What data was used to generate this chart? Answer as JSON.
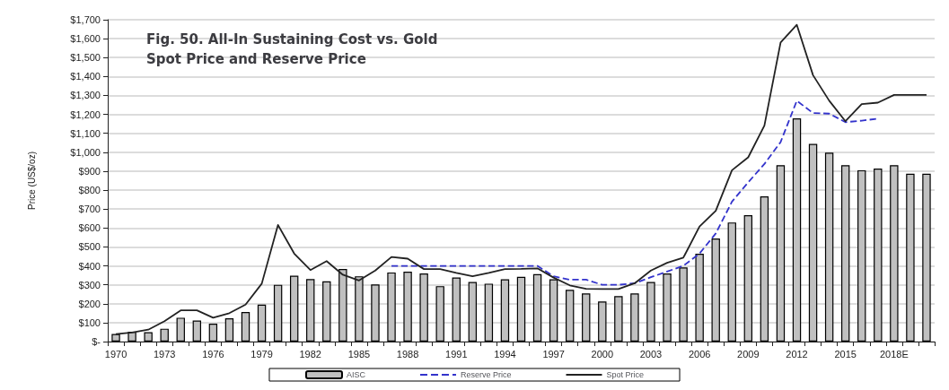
{
  "chart_data": {
    "type": "bar",
    "title": "Fig. 50. All-In Sustaining Cost vs. Gold Spot Price and Reserve Price",
    "ylabel": "Price (US$/oz)",
    "categories": [
      "1970",
      null,
      null,
      "1973",
      null,
      null,
      "1976",
      null,
      null,
      "1979",
      null,
      null,
      "1982",
      null,
      null,
      "1985",
      null,
      null,
      "1988",
      null,
      null,
      "1991",
      null,
      null,
      "1994",
      null,
      null,
      "1997",
      null,
      null,
      "2000",
      null,
      null,
      "2003",
      null,
      null,
      "2006",
      null,
      null,
      "2009",
      null,
      null,
      "2012",
      null,
      null,
      "2015",
      null,
      null,
      "2018E",
      null,
      null
    ],
    "series": [
      {
        "name": "AISC",
        "color": "#c0c0c0",
        "values": [
          40,
          52,
          50,
          68,
          126,
          111,
          95,
          123,
          156,
          195,
          300,
          348,
          330,
          318,
          383,
          345,
          302,
          365,
          369,
          360,
          293,
          338,
          315,
          306,
          329,
          342,
          356,
          329,
          273,
          254,
          212,
          240,
          254,
          315,
          360,
          392,
          464,
          544,
          629,
          668,
          767,
          932,
          1179,
          1044,
          998,
          932,
          905,
          914,
          932,
          887,
          887
        ]
      },
      {
        "name": "Reserve Price",
        "type": "line",
        "line_style": "dashed",
        "color": "#3333cc",
        "values": [
          null,
          null,
          null,
          null,
          null,
          null,
          null,
          null,
          null,
          null,
          null,
          null,
          null,
          null,
          null,
          null,
          null,
          400,
          400,
          400,
          400,
          400,
          400,
          400,
          400,
          400,
          400,
          345,
          327,
          327,
          300,
          300,
          308,
          340,
          370,
          400,
          465,
          571,
          739,
          841,
          938,
          1054,
          1272,
          1207,
          1204,
          1159,
          1167,
          1177,
          null,
          null,
          null
        ]
      },
      {
        "name": "Spot Price",
        "type": "line",
        "line_style": "solid",
        "color": "#222222",
        "values": [
          40,
          48,
          63,
          108,
          165,
          165,
          126,
          150,
          195,
          306,
          616,
          465,
          378,
          425,
          353,
          323,
          375,
          447,
          438,
          383,
          383,
          363,
          345,
          363,
          383,
          384,
          387,
          338,
          297,
          279,
          278,
          278,
          308,
          375,
          416,
          443,
          608,
          691,
          905,
          973,
          1141,
          1580,
          1673,
          1407,
          1272,
          1164,
          1254,
          1262,
          1303,
          1303,
          1303
        ]
      }
    ],
    "ylim": [
      0,
      1700
    ],
    "yticks": [
      {
        "value": 0,
        "label": "$-"
      },
      {
        "value": 100,
        "label": "$100"
      },
      {
        "value": 200,
        "label": "$200"
      },
      {
        "value": 300,
        "label": "$300"
      },
      {
        "value": 400,
        "label": "$400"
      },
      {
        "value": 500,
        "label": "$500"
      },
      {
        "value": 600,
        "label": "$600"
      },
      {
        "value": 700,
        "label": "$700"
      },
      {
        "value": 800,
        "label": "$800"
      },
      {
        "value": 900,
        "label": "$900"
      },
      {
        "value": 1000,
        "label": "$1,000"
      },
      {
        "value": 1100,
        "label": "$1,100"
      },
      {
        "value": 1200,
        "label": "$1,200"
      },
      {
        "value": 1300,
        "label": "$1,300"
      },
      {
        "value": 1400,
        "label": "$1,400"
      },
      {
        "value": 1500,
        "label": "$1,500"
      },
      {
        "value": 1600,
        "label": "$1,600"
      },
      {
        "value": 1700,
        "label": "$1,700"
      }
    ],
    "grid": "y",
    "legend": "bottom",
    "marker": "none"
  }
}
